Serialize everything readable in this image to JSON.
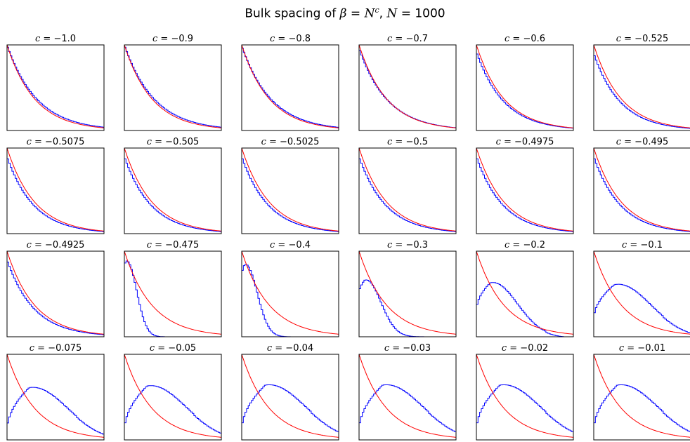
{
  "chart_data": {
    "type": "line",
    "title": {
      "prefix": "Bulk spacing of ",
      "beta": "β",
      "eq": " = ",
      "N": "N",
      "exponent": "c",
      "suffix": ", ",
      "n_label": "N",
      "n_value": " = 1000"
    },
    "panel_title_prefix": "c = ",
    "grid": false,
    "x_range": [
      0,
      3.5
    ],
    "y_range": [
      0,
      1.0
    ],
    "colors": {
      "histogram": "#0000ff",
      "reference": "#ff0000"
    },
    "series_meta": [
      {
        "type": "histogram"
      },
      {
        "type": "reference",
        "function": "exp(-x)"
      }
    ],
    "panels": [
      {
        "c_label": "−1.0",
        "peak_x": 0.0,
        "peak_y": 1.0,
        "start_y": 1.0
      },
      {
        "c_label": "−0.9",
        "peak_x": 0.0,
        "peak_y": 1.0,
        "start_y": 1.0
      },
      {
        "c_label": "−0.8",
        "peak_x": 0.0,
        "peak_y": 0.99,
        "start_y": 0.99
      },
      {
        "c_label": "−0.7",
        "peak_x": 0.0,
        "peak_y": 0.96,
        "start_y": 0.96
      },
      {
        "c_label": "−0.6",
        "peak_x": 0.0,
        "peak_y": 0.92,
        "start_y": 0.92
      },
      {
        "c_label": "−0.525",
        "peak_x": 0.0,
        "peak_y": 0.9,
        "start_y": 0.9
      },
      {
        "c_label": "−0.5075",
        "peak_x": 0.0,
        "peak_y": 0.9,
        "start_y": 0.9
      },
      {
        "c_label": "−0.505",
        "peak_x": 0.0,
        "peak_y": 0.9,
        "start_y": 0.9
      },
      {
        "c_label": "−0.5025",
        "peak_x": 0.0,
        "peak_y": 0.9,
        "start_y": 0.9
      },
      {
        "c_label": "−0.5",
        "peak_x": 0.0,
        "peak_y": 0.9,
        "start_y": 0.9
      },
      {
        "c_label": "−0.4975",
        "peak_x": 0.0,
        "peak_y": 0.9,
        "start_y": 0.9
      },
      {
        "c_label": "−0.495",
        "peak_x": 0.0,
        "peak_y": 0.9,
        "start_y": 0.9
      },
      {
        "c_label": "−0.4925",
        "peak_x": 0.0,
        "peak_y": 0.9,
        "start_y": 0.9
      },
      {
        "c_label": "−0.475",
        "peak_x": 0.05,
        "peak_y": 0.88,
        "start_y": 0.8
      },
      {
        "c_label": "−0.4",
        "peak_x": 0.1,
        "peak_y": 0.84,
        "start_y": 0.7
      },
      {
        "c_label": "−0.3",
        "peak_x": 0.2,
        "peak_y": 0.66,
        "start_y": 0.5
      },
      {
        "c_label": "−0.2",
        "peak_x": 0.5,
        "peak_y": 0.63,
        "start_y": 0.3
      },
      {
        "c_label": "−0.1",
        "peak_x": 0.75,
        "peak_y": 0.61,
        "start_y": 0.2
      },
      {
        "c_label": "−0.075",
        "peak_x": 0.8,
        "peak_y": 0.61,
        "start_y": 0.1
      },
      {
        "c_label": "−0.05",
        "peak_x": 0.82,
        "peak_y": 0.63,
        "start_y": 0.1
      },
      {
        "c_label": "−0.04",
        "peak_x": 0.85,
        "peak_y": 0.64,
        "start_y": 0.1
      },
      {
        "c_label": "−0.03",
        "peak_x": 0.85,
        "peak_y": 0.64,
        "start_y": 0.1
      },
      {
        "c_label": "−0.02",
        "peak_x": 0.85,
        "peak_y": 0.64,
        "start_y": 0.1
      },
      {
        "c_label": "−0.01",
        "peak_x": 0.85,
        "peak_y": 0.64,
        "start_y": 0.1
      }
    ]
  }
}
